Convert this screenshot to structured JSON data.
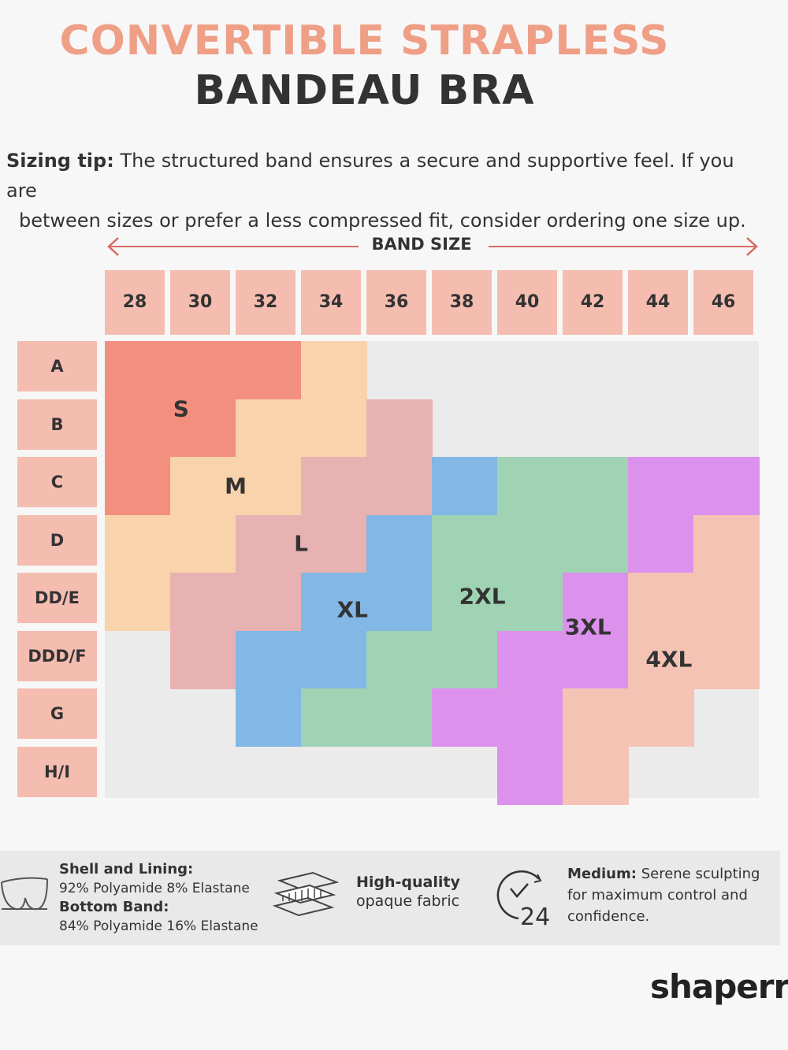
{
  "title": {
    "line1": "CONVERTIBLE STRAPLESS",
    "line2": "BANDEAU BRA"
  },
  "tip": {
    "label": "Sizing tip:",
    "text1": "The structured band ensures a secure and supportive feel. If you are",
    "text2": "between sizes or prefer a less compressed fit, consider ordering one size up."
  },
  "band_size_label": "BAND SIZE",
  "band_sizes": [
    "28",
    "30",
    "32",
    "34",
    "36",
    "38",
    "40",
    "42",
    "44",
    "46"
  ],
  "cup_sizes": [
    "A",
    "B",
    "C",
    "D",
    "DD/E",
    "DDD/F",
    "G",
    "H/I"
  ],
  "zones": [
    {
      "name": "S",
      "color": "#f38f7f"
    },
    {
      "name": "M",
      "color": "#f8d3ab"
    },
    {
      "name": "L",
      "color": "#e8b2b2"
    },
    {
      "name": "XL",
      "color": "#82b7e6"
    },
    {
      "name": "2XL",
      "color": "#9fd3b3"
    },
    {
      "name": "3XL",
      "color": "#dc91ec"
    },
    {
      "name": "4XL",
      "color": "#f5c3b4"
    }
  ],
  "size_map": [
    [
      "S",
      "S",
      "S",
      "M",
      null,
      null,
      null,
      null,
      null,
      null
    ],
    [
      "S",
      "S",
      "M",
      "M",
      "L",
      null,
      null,
      null,
      null,
      null
    ],
    [
      "S",
      "M",
      "M",
      "L",
      "L",
      "XL",
      "2XL",
      "2XL",
      "3XL",
      "3XL"
    ],
    [
      "M",
      "M",
      "L",
      "L",
      "XL",
      "2XL",
      "2XL",
      "2XL",
      "3XL",
      "4XL"
    ],
    [
      "M",
      "L",
      "L",
      "XL",
      "XL",
      "2XL",
      "2XL",
      "3XL",
      "4XL",
      "4XL"
    ],
    [
      null,
      "L",
      "XL",
      "XL",
      "2XL",
      "2XL",
      "3XL",
      "3XL",
      "4XL",
      "4XL"
    ],
    [
      null,
      null,
      "XL",
      "2XL",
      "2XL",
      "3XL",
      "3XL",
      "4XL",
      "4XL",
      null
    ],
    [
      null,
      null,
      null,
      null,
      null,
      null,
      "3XL",
      "4XL",
      null,
      null
    ]
  ],
  "footer": {
    "shell_label": "Shell and Lining:",
    "shell_value": "92% Polyamide 8% Elastane",
    "band_label": "Bottom Band:",
    "band_value": "84% Polyamide 16% Elastane",
    "fabric_line1": "High-quality",
    "fabric_line2": "opaque fabric",
    "medium_label": "Medium:",
    "medium_text1": "Serene sculpting",
    "medium_text2": "for maximum control and",
    "medium_text3": "confidence.",
    "clock_number": "24"
  },
  "brand": "shaperr",
  "icons": {
    "bra": "bra-icon",
    "fabric": "fabric-layers-icon",
    "clock": "clock-24-icon"
  }
}
